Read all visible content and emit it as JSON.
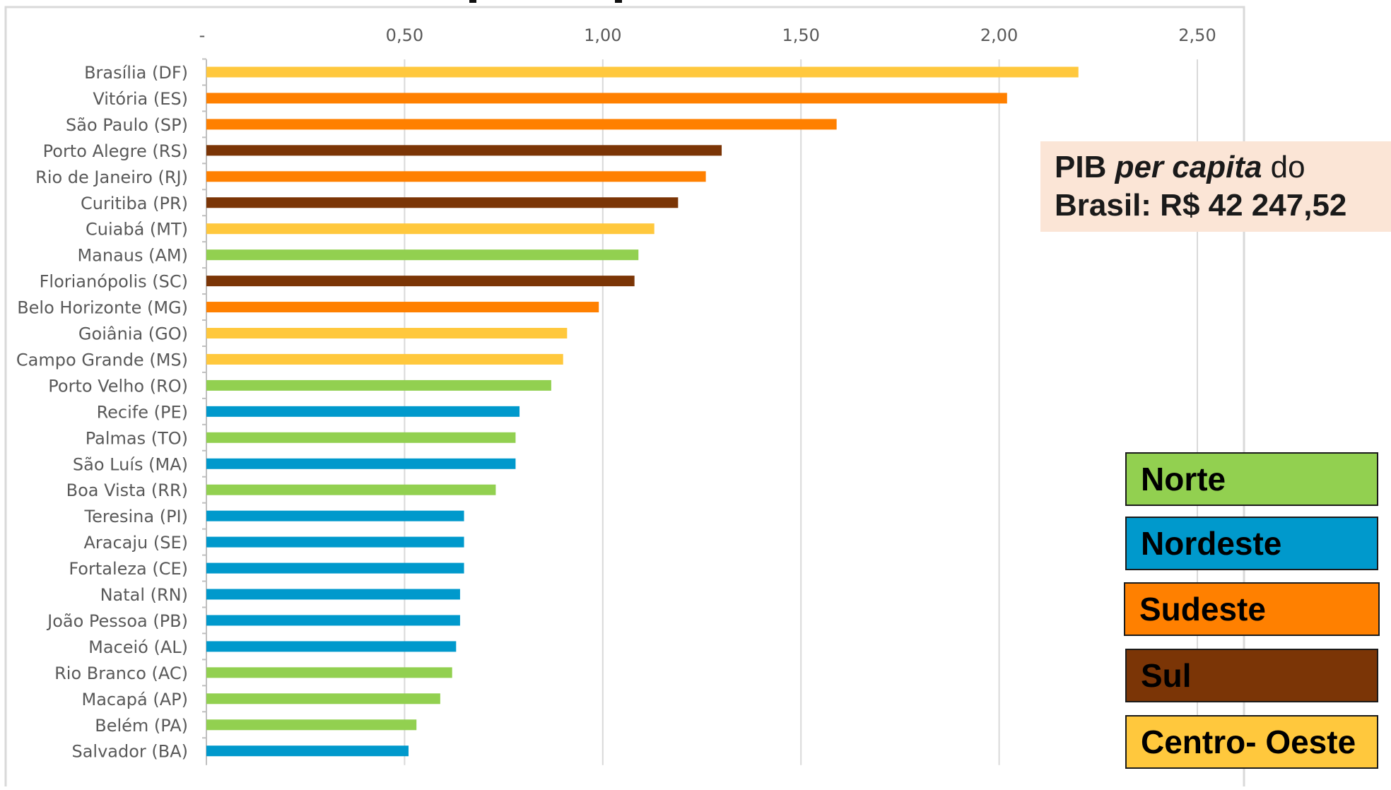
{
  "chart_data": {
    "type": "bar",
    "orientation": "horizontal",
    "xlim": [
      0,
      2.5
    ],
    "x_ticks": [
      {
        "value": 0,
        "label": "-"
      },
      {
        "value": 0.5,
        "label": "0,50"
      },
      {
        "value": 1.0,
        "label": "1,00"
      },
      {
        "value": 1.5,
        "label": "1,50"
      },
      {
        "value": 2.0,
        "label": "2,00"
      },
      {
        "value": 2.5,
        "label": "2,50"
      }
    ],
    "x_axis_position": "top",
    "grid": true,
    "categories": [
      {
        "label": "Brasília (DF)",
        "value": 2.2,
        "region": "Centro-Oeste"
      },
      {
        "label": "Vitória (ES)",
        "value": 2.02,
        "region": "Sudeste"
      },
      {
        "label": "São Paulo (SP)",
        "value": 1.59,
        "region": "Sudeste"
      },
      {
        "label": "Porto Alegre (RS)",
        "value": 1.3,
        "region": "Sul"
      },
      {
        "label": "Rio de Janeiro (RJ)",
        "value": 1.26,
        "region": "Sudeste"
      },
      {
        "label": "Curitiba (PR)",
        "value": 1.19,
        "region": "Sul"
      },
      {
        "label": "Cuiabá (MT)",
        "value": 1.13,
        "region": "Centro-Oeste"
      },
      {
        "label": "Manaus (AM)",
        "value": 1.09,
        "region": "Norte"
      },
      {
        "label": "Florianópolis (SC)",
        "value": 1.08,
        "region": "Sul"
      },
      {
        "label": "Belo Horizonte (MG)",
        "value": 0.99,
        "region": "Sudeste"
      },
      {
        "label": "Goiânia (GO)",
        "value": 0.91,
        "region": "Centro-Oeste"
      },
      {
        "label": "Campo Grande (MS)",
        "value": 0.9,
        "region": "Centro-Oeste"
      },
      {
        "label": "Porto Velho (RO)",
        "value": 0.87,
        "region": "Norte"
      },
      {
        "label": "Recife (PE)",
        "value": 0.79,
        "region": "Nordeste"
      },
      {
        "label": "Palmas (TO)",
        "value": 0.78,
        "region": "Norte"
      },
      {
        "label": "São Luís (MA)",
        "value": 0.78,
        "region": "Nordeste"
      },
      {
        "label": "Boa Vista (RR)",
        "value": 0.73,
        "region": "Norte"
      },
      {
        "label": "Teresina (PI)",
        "value": 0.65,
        "region": "Nordeste"
      },
      {
        "label": "Aracaju (SE)",
        "value": 0.65,
        "region": "Nordeste"
      },
      {
        "label": "Fortaleza (CE)",
        "value": 0.65,
        "region": "Nordeste"
      },
      {
        "label": "Natal (RN)",
        "value": 0.64,
        "region": "Nordeste"
      },
      {
        "label": "João Pessoa (PB)",
        "value": 0.64,
        "region": "Nordeste"
      },
      {
        "label": "Maceió (AL)",
        "value": 0.63,
        "region": "Nordeste"
      },
      {
        "label": "Rio Branco (AC)",
        "value": 0.62,
        "region": "Norte"
      },
      {
        "label": "Macapá (AP)",
        "value": 0.59,
        "region": "Norte"
      },
      {
        "label": "Belém (PA)",
        "value": 0.53,
        "region": "Norte"
      },
      {
        "label": "Salvador (BA)",
        "value": 0.51,
        "region": "Nordeste"
      }
    ],
    "region_colors": {
      "Norte": "#92d050",
      "Nordeste": "#0099cc",
      "Sudeste": "#ff8000",
      "Sul": "#7b3506",
      "Centro-Oeste": "#ffc83d"
    },
    "legend": {
      "placement": "bottom-right",
      "items": [
        {
          "label": "Norte",
          "color": "#92d050"
        },
        {
          "label": "Nordeste",
          "color": "#0099cc"
        },
        {
          "label": "Sudeste",
          "color": "#ff8000"
        },
        {
          "label": "Sul",
          "color": "#7b3506"
        },
        {
          "label": "Centro- Oeste",
          "color": "#ffc83d"
        }
      ]
    },
    "annotation": {
      "line1_lead": "PIB ",
      "line1_italic": "per capita",
      "line1_tail": " do",
      "line2": "Brasil:  R$ 42 247,52"
    }
  }
}
